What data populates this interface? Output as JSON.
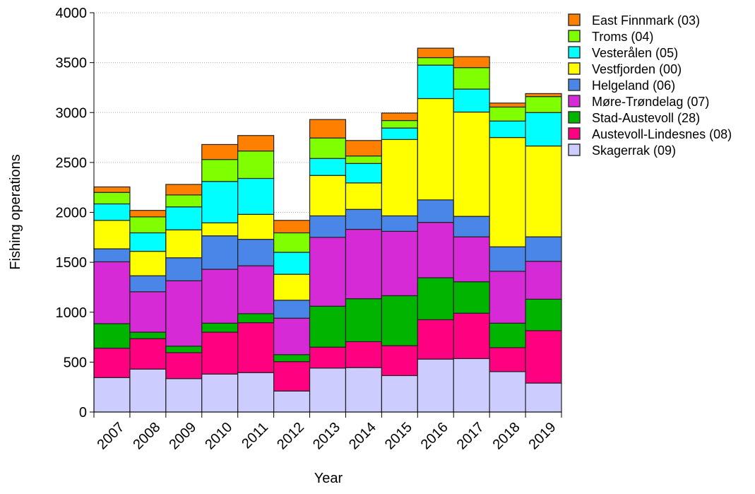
{
  "chart_data": {
    "type": "bar",
    "stacked": true,
    "title": "",
    "xlabel": "Year",
    "ylabel": "Fishing operations",
    "ylim": [
      0,
      4000
    ],
    "yticks": [
      "0",
      "500",
      "1000",
      "1500",
      "2000",
      "2500",
      "3000",
      "3500",
      "4000"
    ],
    "grid": "horizontal dotted",
    "legend_position": "right",
    "categories": [
      "2007",
      "2008",
      "2009",
      "2010",
      "2011",
      "2012",
      "2013",
      "2014",
      "2015",
      "2016",
      "2017",
      "2018",
      "2019"
    ],
    "series": [
      {
        "name": "Skagerrak (09)",
        "color": "#ccccff",
        "values": [
          345,
          430,
          335,
          380,
          395,
          210,
          440,
          445,
          365,
          530,
          535,
          405,
          290
        ]
      },
      {
        "name": "Austevoll-Lindesnes (08)",
        "color": "#ff0080",
        "values": [
          295,
          305,
          260,
          420,
          500,
          295,
          210,
          260,
          300,
          395,
          455,
          240,
          525
        ]
      },
      {
        "name": "Stad-Austevoll (28)",
        "color": "#00b400",
        "values": [
          245,
          65,
          65,
          90,
          90,
          70,
          410,
          430,
          500,
          420,
          315,
          245,
          315
        ]
      },
      {
        "name": "Møre-Trøndelag (07)",
        "color": "#d62ad6",
        "values": [
          620,
          405,
          655,
          540,
          480,
          365,
          690,
          695,
          645,
          555,
          450,
          520,
          380
        ]
      },
      {
        "name": "Helgeland (06)",
        "color": "#4a86e8",
        "values": [
          130,
          160,
          230,
          335,
          265,
          180,
          215,
          200,
          155,
          225,
          205,
          245,
          245
        ]
      },
      {
        "name": "Vestfjorden (00)",
        "color": "#ffff00",
        "values": [
          285,
          245,
          280,
          130,
          250,
          260,
          405,
          265,
          765,
          1015,
          1045,
          1095,
          910
        ]
      },
      {
        "name": "Vesterålen (05)",
        "color": "#00ffff",
        "values": [
          165,
          185,
          230,
          415,
          360,
          220,
          170,
          195,
          115,
          335,
          230,
          165,
          335
        ]
      },
      {
        "name": "Troms (04)",
        "color": "#80ff00",
        "values": [
          115,
          160,
          120,
          220,
          275,
          195,
          205,
          75,
          75,
          75,
          215,
          140,
          160
        ]
      },
      {
        "name": "East Finnmark (03)",
        "color": "#ff8000",
        "values": [
          55,
          65,
          105,
          150,
          155,
          125,
          185,
          155,
          75,
          95,
          110,
          40,
          30
        ]
      }
    ]
  }
}
